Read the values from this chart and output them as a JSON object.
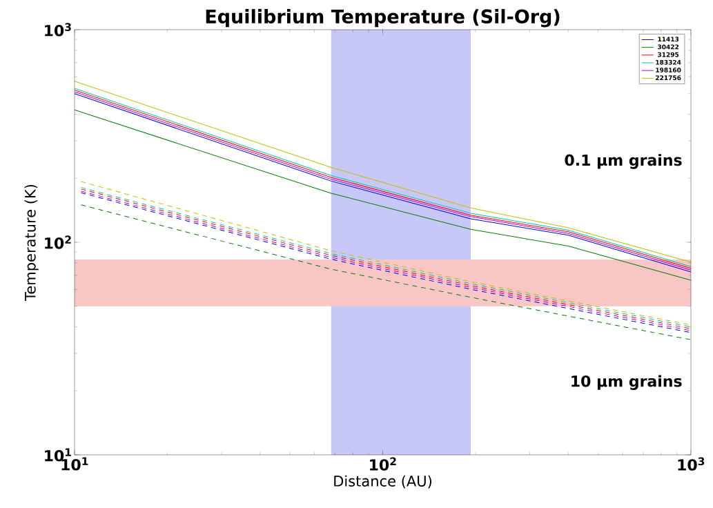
{
  "chart_data": {
    "type": "line",
    "title": "Equilibrium Temperature (Sil-Org)",
    "xlabel": "Distance (AU)",
    "ylabel": "Temperature (K)",
    "log": "xy",
    "xlim": [
      10,
      1000
    ],
    "ylim": [
      10,
      1000
    ],
    "xticks": [
      {
        "value": 10,
        "label": "10$^{1}$"
      },
      {
        "value": 100,
        "label": "10$^{2}$"
      },
      {
        "value": 1000,
        "label": "10$^{3}$"
      }
    ],
    "yticks": [
      {
        "value": 10,
        "label": "10$^{1}$"
      },
      {
        "value": 100,
        "label": "10$^{2}$"
      },
      {
        "value": 1000,
        "label": "10$^{3}$"
      }
    ],
    "legend": "top right",
    "grid": false,
    "bands": [
      {
        "axis": "x",
        "from": 68,
        "to": 193,
        "color": "#c8c8f8"
      },
      {
        "axis": "y",
        "from": 50,
        "to": 83,
        "color": "#f9c6c6"
      }
    ],
    "annotations": [
      "0.1 μm grains",
      "10 μm grains"
    ],
    "series": [
      {
        "name": "11413",
        "color": "#0000ff",
        "line_style": "solid",
        "x": [
          10,
          68,
          193,
          400,
          1000
        ],
        "values": [
          500,
          194,
          129,
          108,
          72.5
        ]
      },
      {
        "name": "30422",
        "color": "#008000",
        "line_style": "solid",
        "x": [
          10,
          68,
          193,
          400,
          1000
        ],
        "values": [
          419,
          170,
          115,
          96,
          66.3
        ]
      },
      {
        "name": "31295",
        "color": "#ff0000",
        "line_style": "solid",
        "x": [
          10,
          68,
          193,
          400,
          1000
        ],
        "values": [
          520,
          202,
          134,
          112,
          75.4
        ]
      },
      {
        "name": "183324",
        "color": "#00bfbf",
        "line_style": "solid",
        "x": [
          10,
          68,
          193,
          400,
          1000
        ],
        "values": [
          530,
          206,
          137,
          114,
          76.9
        ]
      },
      {
        "name": "198160",
        "color": "#bf00bf",
        "line_style": "solid",
        "x": [
          10,
          68,
          193,
          400,
          1000
        ],
        "values": [
          510,
          198,
          132,
          110,
          74.0
        ]
      },
      {
        "name": "221756",
        "color": "#bfbf00",
        "line_style": "solid",
        "x": [
          10,
          68,
          193,
          400,
          1000
        ],
        "values": [
          572,
          225,
          145,
          117,
          80.6
        ]
      },
      {
        "color": "#0000ff",
        "line_style": "dashed",
        "x": [
          10.5,
          68,
          193,
          1000
        ],
        "values": [
          171,
          83.2,
          60.1,
          37.6
        ]
      },
      {
        "color": "#008000",
        "line_style": "dashed",
        "x": [
          10.5,
          68,
          193,
          1000
        ],
        "values": [
          150,
          74.7,
          55.1,
          34.8
        ]
      },
      {
        "color": "#ff0000",
        "line_style": "dashed",
        "x": [
          10.5,
          68,
          193,
          1000
        ],
        "values": [
          178,
          86.7,
          62.6,
          39.2
        ]
      },
      {
        "color": "#00bfbf",
        "line_style": "dashed",
        "x": [
          10.5,
          68,
          193,
          1000
        ],
        "values": [
          181,
          88.4,
          63.9,
          40.0
        ]
      },
      {
        "color": "#bf00bf",
        "line_style": "dashed",
        "x": [
          10.5,
          68,
          193,
          1000
        ],
        "values": [
          174,
          84.9,
          61.4,
          38.4
        ]
      },
      {
        "color": "#bfbf00",
        "line_style": "dashed",
        "x": [
          10.5,
          68,
          193,
          1000
        ],
        "values": [
          193,
          91.2,
          65.2,
          40.8
        ]
      }
    ]
  }
}
